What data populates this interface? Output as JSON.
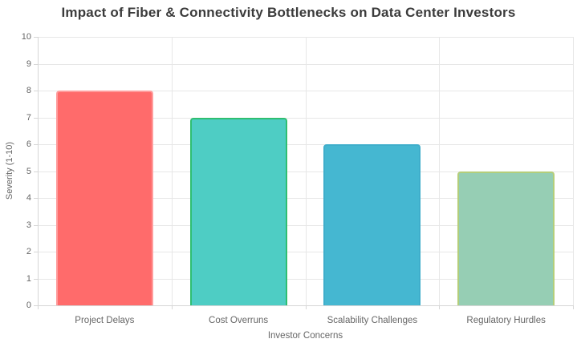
{
  "page": {
    "background_color": "#ffffff"
  },
  "chart_data": {
    "type": "bar",
    "title": "Impact of Fiber & Connectivity Bottlenecks on Data Center Investors",
    "xlabel": "Investor Concerns",
    "ylabel": "Severity (1-10)",
    "categories": [
      "Project Delays",
      "Cost Overruns",
      "Scalability Challenges",
      "Regulatory Hurdles"
    ],
    "values": [
      8,
      7,
      6,
      5
    ],
    "ylim": [
      0,
      10
    ],
    "ytick_step": 1,
    "ytick_labels": [
      "0",
      "1",
      "2",
      "3",
      "4",
      "5",
      "6",
      "7",
      "8",
      "9",
      "10"
    ],
    "grid": true,
    "legend_position": "none",
    "bar_fill_colors": [
      "#FF6B6B",
      "#4ECDC4",
      "#45B7D1",
      "#96CEB4"
    ],
    "bar_border_colors": [
      "#FF9C9C",
      "#2FBE71",
      "#3FAECB",
      "#B4CE7A"
    ],
    "grid_color": "#e7e7e7",
    "axis_line_color": "#d6d6d6",
    "title_color": "#3b3b3b",
    "tick_label_color": "#666666"
  }
}
